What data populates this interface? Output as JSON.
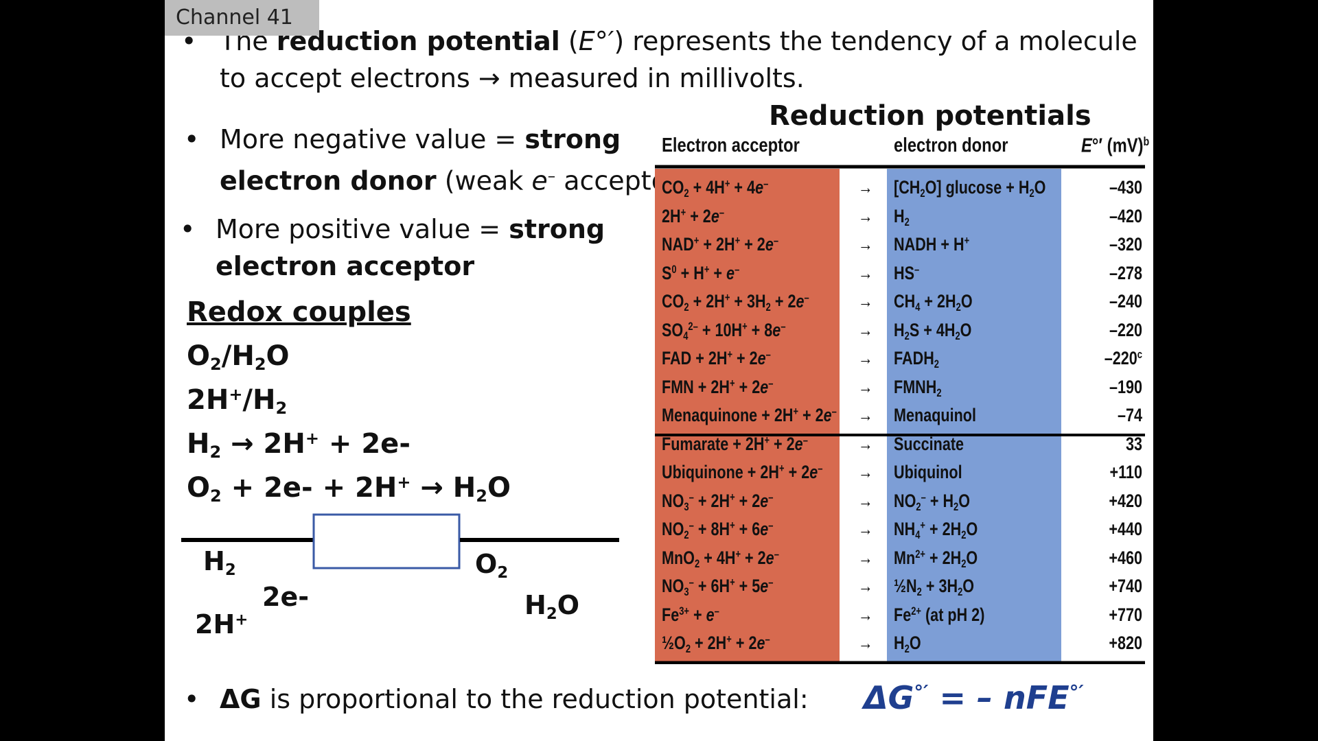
{
  "channel": "Channel 41",
  "bullets": {
    "b1": {
      "pre": "The ",
      "bold": "reduction potential",
      "mid": " (",
      "symbol": "E°′",
      "post": ") represents the tendency of a molecule",
      "line2": "to accept electrons → measured in millivolts."
    },
    "b2": {
      "pre": "More negative value = ",
      "bold1": "strong",
      "bold2": "electron donor",
      "mid": " (weak ",
      "symbol": "e",
      "sup": "–",
      "post": " acceptor)"
    },
    "b3": {
      "pre": "More positive value = ",
      "bold1": "strong",
      "bold2": "electron acceptor"
    },
    "b4": {
      "bold": "ΔG",
      "post": " is proportional to the reduction potential:"
    }
  },
  "redox": {
    "heading": "Redox couples",
    "couples": [
      "O2/H2O",
      "2H+/H2"
    ],
    "reactions": [
      "H2 → 2H+ + 2e-",
      "O2 + 2e- + 2H+ → H2O"
    ],
    "diagram_labels": [
      "H2",
      "2e-",
      "2H+",
      "O2",
      "H2O"
    ]
  },
  "equation": "ΔG°′ = – nFE°′",
  "table": {
    "title": "Reduction potentials",
    "headers": [
      "Electron acceptor",
      "electron donor",
      "E°′ (mV)b"
    ],
    "arrow": "→",
    "rows": [
      {
        "a": "CO<sub>2</sub> + 4H<sup>+</sup> + 4<i>e</i><sup>–</sup>",
        "d": "[CH<sub>2</sub>O] glucose + H<sub>2</sub>O",
        "v": "–430"
      },
      {
        "a": "2H<sup>+</sup> + 2<i>e</i><sup>–</sup>",
        "d": "H<sub>2</sub>",
        "v": "–420"
      },
      {
        "a": "NAD<sup>+</sup> + 2H<sup>+</sup> + 2<i>e</i><sup>–</sup>",
        "d": "NADH + H<sup>+</sup>",
        "v": "–320"
      },
      {
        "a": "S<sup>0</sup> + H<sup>+</sup> + <i>e</i><sup>–</sup>",
        "d": "HS<sup>–</sup>",
        "v": "–278"
      },
      {
        "a": "CO<sub>2</sub> + 2H<sup>+</sup> + 3H<sub>2</sub> + 2<i>e</i><sup>–</sup>",
        "d": "CH<sub>4</sub> + 2H<sub>2</sub>O",
        "v": "–240"
      },
      {
        "a": "SO<sub>4</sub><sup>2–</sup> + 10H<sup>+</sup> + 8<i>e</i><sup>–</sup>",
        "d": "H<sub>2</sub>S + 4H<sub>2</sub>O",
        "v": "–220"
      },
      {
        "a": "FAD + 2H<sup>+</sup> + 2<i>e</i><sup>–</sup>",
        "d": "FADH<sub>2</sub>",
        "v": "–220<sup>c</sup>"
      },
      {
        "a": "FMN + 2H<sup>+</sup> + 2<i>e</i><sup>–</sup>",
        "d": "FMNH<sub>2</sub>",
        "v": "–190"
      },
      {
        "a": "Menaquinone + 2H<sup>+</sup> + 2<i>e</i><sup>–</sup>",
        "d": "Menaquinol",
        "v": "–74"
      },
      {
        "a": "Fumarate + 2H<sup>+</sup> + 2<i>e</i><sup>–</sup>",
        "d": "Succinate",
        "v": "33"
      },
      {
        "a": "Ubiquinone + 2H<sup>+</sup> + 2<i>e</i><sup>–</sup>",
        "d": "Ubiquinol",
        "v": "+110"
      },
      {
        "a": "NO<sub>3</sub><sup>–</sup> + 2H<sup>+</sup> + 2<i>e</i><sup>–</sup>",
        "d": "NO<sub>2</sub><sup>–</sup> + H<sub>2</sub>O",
        "v": "+420"
      },
      {
        "a": "NO<sub>2</sub><sup>–</sup> + 8H<sup>+</sup> + 6<i>e</i><sup>–</sup>",
        "d": "NH<sub>4</sub><sup>+</sup> + 2H<sub>2</sub>O",
        "v": "+440"
      },
      {
        "a": "MnO<sub>2</sub> + 4H<sup>+</sup> + 2<i>e</i><sup>–</sup>",
        "d": "Mn<sup>2+</sup> + 2H<sub>2</sub>O",
        "v": "+460"
      },
      {
        "a": "NO<sub>3</sub><sup>–</sup> + 6H<sup>+</sup> + 5<i>e</i><sup>–</sup>",
        "d": "½N<sub>2</sub> + 3H<sub>2</sub>O",
        "v": "+740"
      },
      {
        "a": "Fe<sup>3+</sup> + <i>e</i><sup>–</sup>",
        "d": "Fe<sup>2+</sup> (at pH 2)",
        "v": "+770"
      },
      {
        "a": "½O<sub>2</sub> + 2H<sup>+</sup> + 2<i>e</i><sup>–</sup>",
        "d": "H<sub>2</sub>O",
        "v": "+820"
      }
    ]
  },
  "colors": {
    "acceptor": "#d76a4f",
    "donor": "#7d9ed6",
    "equation": "#1f3f8f"
  }
}
